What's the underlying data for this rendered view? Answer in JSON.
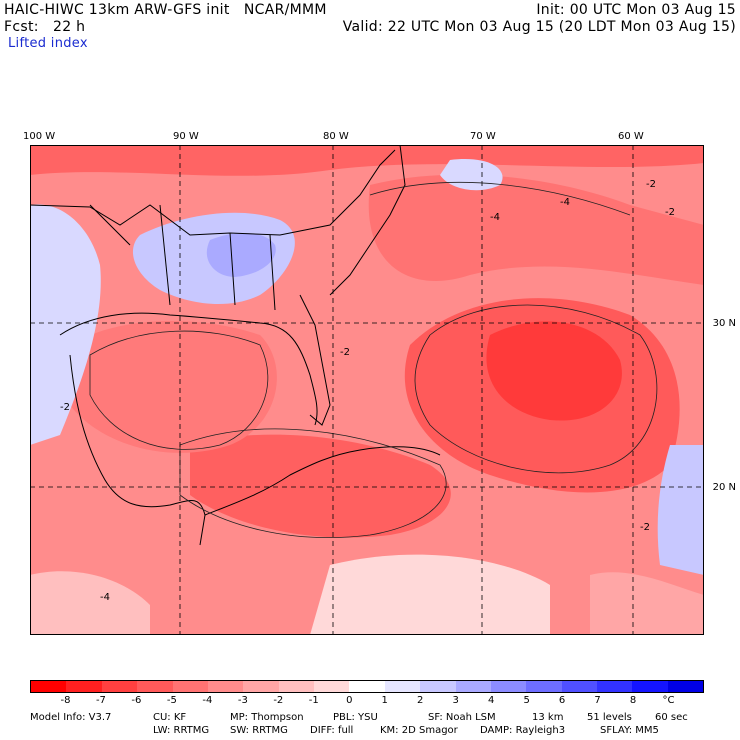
{
  "header": {
    "title_left": "HAIC-HIWC 13km ARW-GFS init   NCAR/MMM",
    "init": "Init: 00 UTC Mon 03 Aug 15",
    "fcst": "Fcst:   22 h",
    "valid": "Valid: 22 UTC Mon 03 Aug 15 (20 LDT Mon 03 Aug 15)",
    "field": "Lifted index"
  },
  "map": {
    "lon_labels": [
      "100 W",
      "90 W",
      "80 W",
      "70 W",
      "60 W"
    ],
    "lat_labels": [
      "30 N",
      "20 N"
    ],
    "contour_labels": [
      "-2",
      "-4"
    ]
  },
  "colorbar": {
    "colors": [
      "#ff0000",
      "#ff2020",
      "#ff4040",
      "#ff5a5a",
      "#ff7373",
      "#ff8c8c",
      "#ffa6a6",
      "#ffbfbf",
      "#ffd9d9",
      "#ffffff",
      "#e6e6ff",
      "#c8c8ff",
      "#aaaaff",
      "#8c8cff",
      "#6e6eff",
      "#5050ff",
      "#3232ff",
      "#1414ff",
      "#0000e6"
    ],
    "ticks": [
      "-8",
      "-7",
      "-6",
      "-5",
      "-4",
      "-3",
      "-2",
      "-1",
      "0",
      "1",
      "2",
      "3",
      "4",
      "5",
      "6",
      "7",
      "8",
      "°C"
    ]
  },
  "model_info": {
    "line1": [
      "Model Info: V3.7",
      "CU: KF",
      "MP: Thompson",
      "PBL: YSU",
      "SF: Noah LSM",
      "13 km",
      "51 levels",
      "60 sec"
    ],
    "line2": [
      "LW: RRTMG",
      "SW: RRTMG",
      "DIFF: full",
      "KM: 2D Smagor",
      "DAMP: Rayleigh3",
      "SFLAY: MM5"
    ]
  }
}
